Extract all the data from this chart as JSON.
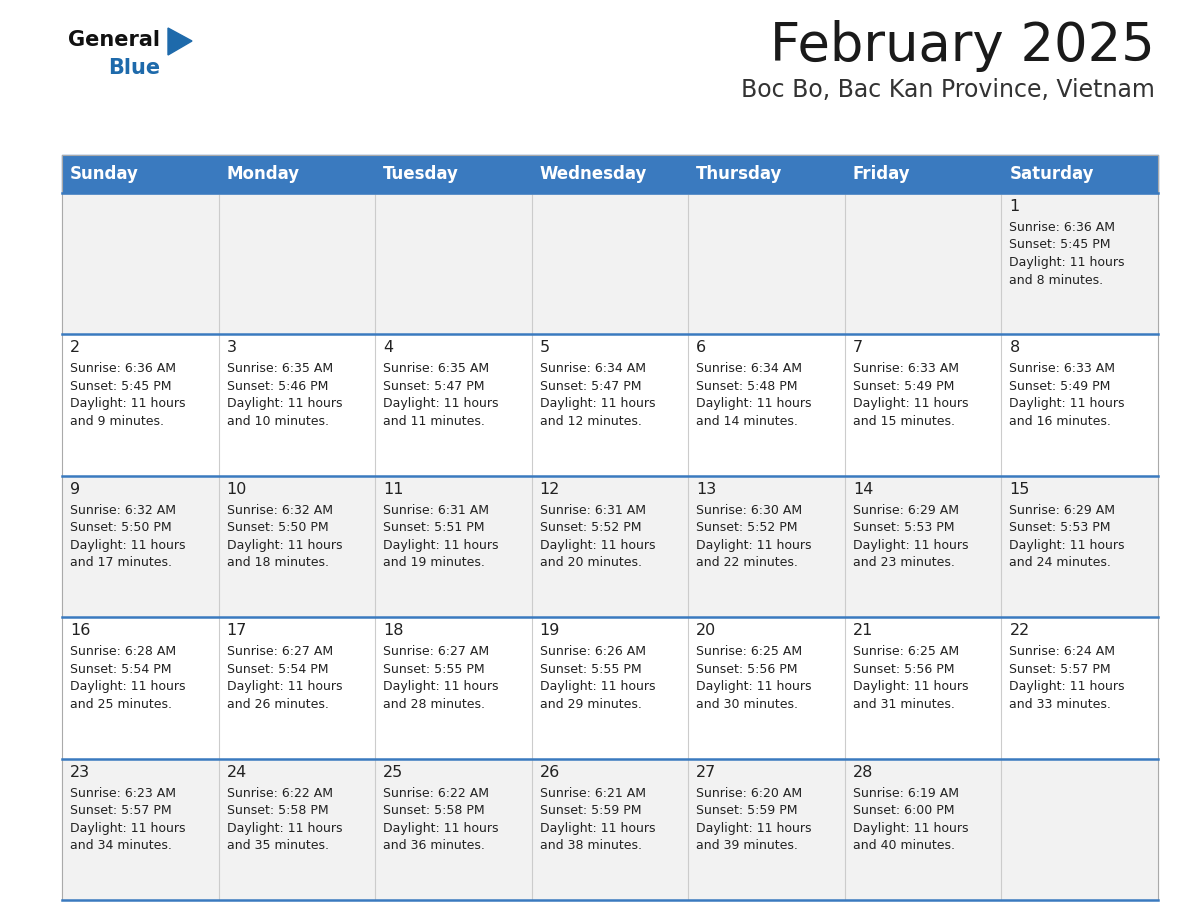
{
  "title": "February 2025",
  "subtitle": "Boc Bo, Bac Kan Province, Vietnam",
  "header_color": "#3a7abf",
  "header_text_color": "#ffffff",
  "day_names": [
    "Sunday",
    "Monday",
    "Tuesday",
    "Wednesday",
    "Thursday",
    "Friday",
    "Saturday"
  ],
  "row_bg_even": "#f2f2f2",
  "row_bg_odd": "#ffffff",
  "divider_color": "#3a7abf",
  "text_color": "#222222",
  "calendar_data": [
    [
      {
        "day": null,
        "sunrise": null,
        "sunset": null,
        "daylight_line1": null,
        "daylight_line2": null
      },
      {
        "day": null,
        "sunrise": null,
        "sunset": null,
        "daylight_line1": null,
        "daylight_line2": null
      },
      {
        "day": null,
        "sunrise": null,
        "sunset": null,
        "daylight_line1": null,
        "daylight_line2": null
      },
      {
        "day": null,
        "sunrise": null,
        "sunset": null,
        "daylight_line1": null,
        "daylight_line2": null
      },
      {
        "day": null,
        "sunrise": null,
        "sunset": null,
        "daylight_line1": null,
        "daylight_line2": null
      },
      {
        "day": null,
        "sunrise": null,
        "sunset": null,
        "daylight_line1": null,
        "daylight_line2": null
      },
      {
        "day": "1",
        "sunrise": "Sunrise: 6:36 AM",
        "sunset": "Sunset: 5:45 PM",
        "daylight_line1": "Daylight: 11 hours",
        "daylight_line2": "and 8 minutes."
      }
    ],
    [
      {
        "day": "2",
        "sunrise": "Sunrise: 6:36 AM",
        "sunset": "Sunset: 5:45 PM",
        "daylight_line1": "Daylight: 11 hours",
        "daylight_line2": "and 9 minutes."
      },
      {
        "day": "3",
        "sunrise": "Sunrise: 6:35 AM",
        "sunset": "Sunset: 5:46 PM",
        "daylight_line1": "Daylight: 11 hours",
        "daylight_line2": "and 10 minutes."
      },
      {
        "day": "4",
        "sunrise": "Sunrise: 6:35 AM",
        "sunset": "Sunset: 5:47 PM",
        "daylight_line1": "Daylight: 11 hours",
        "daylight_line2": "and 11 minutes."
      },
      {
        "day": "5",
        "sunrise": "Sunrise: 6:34 AM",
        "sunset": "Sunset: 5:47 PM",
        "daylight_line1": "Daylight: 11 hours",
        "daylight_line2": "and 12 minutes."
      },
      {
        "day": "6",
        "sunrise": "Sunrise: 6:34 AM",
        "sunset": "Sunset: 5:48 PM",
        "daylight_line1": "Daylight: 11 hours",
        "daylight_line2": "and 14 minutes."
      },
      {
        "day": "7",
        "sunrise": "Sunrise: 6:33 AM",
        "sunset": "Sunset: 5:49 PM",
        "daylight_line1": "Daylight: 11 hours",
        "daylight_line2": "and 15 minutes."
      },
      {
        "day": "8",
        "sunrise": "Sunrise: 6:33 AM",
        "sunset": "Sunset: 5:49 PM",
        "daylight_line1": "Daylight: 11 hours",
        "daylight_line2": "and 16 minutes."
      }
    ],
    [
      {
        "day": "9",
        "sunrise": "Sunrise: 6:32 AM",
        "sunset": "Sunset: 5:50 PM",
        "daylight_line1": "Daylight: 11 hours",
        "daylight_line2": "and 17 minutes."
      },
      {
        "day": "10",
        "sunrise": "Sunrise: 6:32 AM",
        "sunset": "Sunset: 5:50 PM",
        "daylight_line1": "Daylight: 11 hours",
        "daylight_line2": "and 18 minutes."
      },
      {
        "day": "11",
        "sunrise": "Sunrise: 6:31 AM",
        "sunset": "Sunset: 5:51 PM",
        "daylight_line1": "Daylight: 11 hours",
        "daylight_line2": "and 19 minutes."
      },
      {
        "day": "12",
        "sunrise": "Sunrise: 6:31 AM",
        "sunset": "Sunset: 5:52 PM",
        "daylight_line1": "Daylight: 11 hours",
        "daylight_line2": "and 20 minutes."
      },
      {
        "day": "13",
        "sunrise": "Sunrise: 6:30 AM",
        "sunset": "Sunset: 5:52 PM",
        "daylight_line1": "Daylight: 11 hours",
        "daylight_line2": "and 22 minutes."
      },
      {
        "day": "14",
        "sunrise": "Sunrise: 6:29 AM",
        "sunset": "Sunset: 5:53 PM",
        "daylight_line1": "Daylight: 11 hours",
        "daylight_line2": "and 23 minutes."
      },
      {
        "day": "15",
        "sunrise": "Sunrise: 6:29 AM",
        "sunset": "Sunset: 5:53 PM",
        "daylight_line1": "Daylight: 11 hours",
        "daylight_line2": "and 24 minutes."
      }
    ],
    [
      {
        "day": "16",
        "sunrise": "Sunrise: 6:28 AM",
        "sunset": "Sunset: 5:54 PM",
        "daylight_line1": "Daylight: 11 hours",
        "daylight_line2": "and 25 minutes."
      },
      {
        "day": "17",
        "sunrise": "Sunrise: 6:27 AM",
        "sunset": "Sunset: 5:54 PM",
        "daylight_line1": "Daylight: 11 hours",
        "daylight_line2": "and 26 minutes."
      },
      {
        "day": "18",
        "sunrise": "Sunrise: 6:27 AM",
        "sunset": "Sunset: 5:55 PM",
        "daylight_line1": "Daylight: 11 hours",
        "daylight_line2": "and 28 minutes."
      },
      {
        "day": "19",
        "sunrise": "Sunrise: 6:26 AM",
        "sunset": "Sunset: 5:55 PM",
        "daylight_line1": "Daylight: 11 hours",
        "daylight_line2": "and 29 minutes."
      },
      {
        "day": "20",
        "sunrise": "Sunrise: 6:25 AM",
        "sunset": "Sunset: 5:56 PM",
        "daylight_line1": "Daylight: 11 hours",
        "daylight_line2": "and 30 minutes."
      },
      {
        "day": "21",
        "sunrise": "Sunrise: 6:25 AM",
        "sunset": "Sunset: 5:56 PM",
        "daylight_line1": "Daylight: 11 hours",
        "daylight_line2": "and 31 minutes."
      },
      {
        "day": "22",
        "sunrise": "Sunrise: 6:24 AM",
        "sunset": "Sunset: 5:57 PM",
        "daylight_line1": "Daylight: 11 hours",
        "daylight_line2": "and 33 minutes."
      }
    ],
    [
      {
        "day": "23",
        "sunrise": "Sunrise: 6:23 AM",
        "sunset": "Sunset: 5:57 PM",
        "daylight_line1": "Daylight: 11 hours",
        "daylight_line2": "and 34 minutes."
      },
      {
        "day": "24",
        "sunrise": "Sunrise: 6:22 AM",
        "sunset": "Sunset: 5:58 PM",
        "daylight_line1": "Daylight: 11 hours",
        "daylight_line2": "and 35 minutes."
      },
      {
        "day": "25",
        "sunrise": "Sunrise: 6:22 AM",
        "sunset": "Sunset: 5:58 PM",
        "daylight_line1": "Daylight: 11 hours",
        "daylight_line2": "and 36 minutes."
      },
      {
        "day": "26",
        "sunrise": "Sunrise: 6:21 AM",
        "sunset": "Sunset: 5:59 PM",
        "daylight_line1": "Daylight: 11 hours",
        "daylight_line2": "and 38 minutes."
      },
      {
        "day": "27",
        "sunrise": "Sunrise: 6:20 AM",
        "sunset": "Sunset: 5:59 PM",
        "daylight_line1": "Daylight: 11 hours",
        "daylight_line2": "and 39 minutes."
      },
      {
        "day": "28",
        "sunrise": "Sunrise: 6:19 AM",
        "sunset": "Sunset: 6:00 PM",
        "daylight_line1": "Daylight: 11 hours",
        "daylight_line2": "and 40 minutes."
      },
      {
        "day": null,
        "sunrise": null,
        "sunset": null,
        "daylight_line1": null,
        "daylight_line2": null
      }
    ]
  ]
}
